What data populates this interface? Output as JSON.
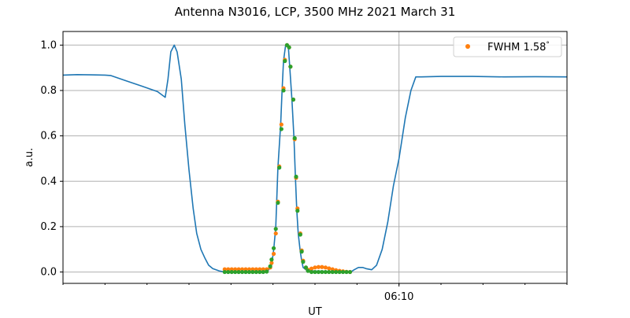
{
  "chart_data": {
    "type": "line",
    "title": "Antenna N3016, LCP, 3500 MHz 2021 March 31",
    "xlabel": "UT",
    "ylabel": "a.u.",
    "xlim": [
      "06:02:00",
      "06:14:00"
    ],
    "ylim": [
      -0.05,
      1.06
    ],
    "x_major_ticks": [
      {
        "t": "06:10:00",
        "label": "06:10"
      }
    ],
    "x_minor_tick_interval": "1 min",
    "y_ticks": [
      0.0,
      0.2,
      0.4,
      0.6,
      0.8,
      1.0
    ],
    "y_tick_labels": [
      "0.0",
      "0.2",
      "0.4",
      "0.6",
      "0.8",
      "1.0"
    ],
    "grid": "on (horizontal at y ticks, vertical at major x ticks)",
    "legend": {
      "placement": "top-right",
      "entries": [
        "FWHM 1.58$^\\circ$"
      ],
      "display": "FWHM 1.58",
      "degree_sign": "°"
    },
    "colors": {
      "line": "#1f77b4",
      "fit_dots": "#ff7f0e",
      "data_dots": "#2ca02c",
      "grid": "#b0b0b0"
    },
    "series": [
      {
        "style": "line",
        "color": "#1f77b4",
        "points": [
          [
            "06:02:00",
            0.868
          ],
          [
            "06:02:20",
            0.87
          ],
          [
            "06:02:40",
            0.869
          ],
          [
            "06:03:00",
            0.868
          ],
          [
            "06:03:08",
            0.866
          ],
          [
            "06:03:30",
            0.843
          ],
          [
            "06:03:52",
            0.82
          ],
          [
            "06:04:15",
            0.795
          ],
          [
            "06:04:26",
            0.77
          ],
          [
            "06:04:30",
            0.85
          ],
          [
            "06:04:34",
            0.97
          ],
          [
            "06:04:39",
            1.0
          ],
          [
            "06:04:43",
            0.97
          ],
          [
            "06:04:49",
            0.85
          ],
          [
            "06:04:54",
            0.65
          ],
          [
            "06:05:00",
            0.45
          ],
          [
            "06:05:06",
            0.28
          ],
          [
            "06:05:11",
            0.17
          ],
          [
            "06:05:17",
            0.1
          ],
          [
            "06:05:23",
            0.06
          ],
          [
            "06:05:28",
            0.03
          ],
          [
            "06:05:34",
            0.015
          ],
          [
            "06:05:43",
            0.005
          ],
          [
            "06:05:51",
            0.0
          ],
          [
            "06:06:52",
            0.002
          ],
          [
            "06:06:58",
            0.03
          ],
          [
            "06:07:01",
            0.1
          ],
          [
            "06:07:04",
            0.2
          ],
          [
            "06:07:07",
            0.46
          ],
          [
            "06:07:11",
            0.65
          ],
          [
            "06:07:13",
            0.8
          ],
          [
            "06:07:15",
            0.93
          ],
          [
            "06:07:18",
            1.0
          ],
          [
            "06:07:22",
            0.99
          ],
          [
            "06:07:24",
            0.9
          ],
          [
            "06:07:27",
            0.76
          ],
          [
            "06:07:30",
            0.59
          ],
          [
            "06:07:32",
            0.42
          ],
          [
            "06:07:34",
            0.27
          ],
          [
            "06:07:36",
            0.17
          ],
          [
            "06:07:39",
            0.09
          ],
          [
            "06:07:41",
            0.05
          ],
          [
            "06:07:43",
            0.02
          ],
          [
            "06:07:49",
            0.005
          ],
          [
            "06:08:51",
            0.0
          ],
          [
            "06:08:56",
            0.01
          ],
          [
            "06:09:02",
            0.02
          ],
          [
            "06:09:08",
            0.02
          ],
          [
            "06:09:13",
            0.015
          ],
          [
            "06:09:21",
            0.01
          ],
          [
            "06:09:28",
            0.03
          ],
          [
            "06:09:36",
            0.1
          ],
          [
            "06:09:44",
            0.22
          ],
          [
            "06:09:52",
            0.38
          ],
          [
            "06:10:00",
            0.5
          ],
          [
            "06:10:09",
            0.68
          ],
          [
            "06:10:17",
            0.8
          ],
          [
            "06:10:24",
            0.86
          ],
          [
            "06:10:32",
            0.86
          ],
          [
            "06:11:00",
            0.862
          ],
          [
            "06:11:45",
            0.862
          ],
          [
            "06:12:30",
            0.86
          ],
          [
            "06:13:15",
            0.861
          ],
          [
            "06:14:00",
            0.86
          ]
        ]
      },
      {
        "style": "dots",
        "legend": "FWHM 1.58",
        "color": "#ff7f0e",
        "points": [
          [
            "06:05:51",
            0.012
          ],
          [
            "06:05:56",
            0.012
          ],
          [
            "06:06:01",
            0.012
          ],
          [
            "06:06:06",
            0.012
          ],
          [
            "06:06:11",
            0.012
          ],
          [
            "06:06:16",
            0.012
          ],
          [
            "06:06:21",
            0.012
          ],
          [
            "06:06:26",
            0.012
          ],
          [
            "06:06:31",
            0.012
          ],
          [
            "06:06:36",
            0.012
          ],
          [
            "06:06:41",
            0.012
          ],
          [
            "06:06:46",
            0.012
          ],
          [
            "06:06:51",
            0.012
          ],
          [
            "06:06:56",
            0.02
          ],
          [
            "06:06:58",
            0.04
          ],
          [
            "06:07:01",
            0.08
          ],
          [
            "06:07:04",
            0.17
          ],
          [
            "06:07:07",
            0.31
          ],
          [
            "06:07:09",
            0.465
          ],
          [
            "06:07:12",
            0.65
          ],
          [
            "06:07:15",
            0.81
          ],
          [
            "06:07:17",
            0.935
          ],
          [
            "06:07:20",
            1.0
          ],
          [
            "06:07:23",
            0.99
          ],
          [
            "06:07:25",
            0.905
          ],
          [
            "06:07:29",
            0.76
          ],
          [
            "06:07:31",
            0.585
          ],
          [
            "06:07:33",
            0.415
          ],
          [
            "06:07:35",
            0.28
          ],
          [
            "06:07:39",
            0.17
          ],
          [
            "06:07:41",
            0.095
          ],
          [
            "06:07:43",
            0.05
          ],
          [
            "06:07:47",
            0.02
          ],
          [
            "06:07:50",
            0.01
          ],
          [
            "06:07:55",
            0.015
          ],
          [
            "06:08:00",
            0.02
          ],
          [
            "06:08:05",
            0.022
          ],
          [
            "06:08:10",
            0.022
          ],
          [
            "06:08:15",
            0.02
          ],
          [
            "06:08:20",
            0.016
          ],
          [
            "06:08:25",
            0.012
          ],
          [
            "06:08:30",
            0.008
          ],
          [
            "06:08:35",
            0.005
          ],
          [
            "06:08:40",
            0.003
          ],
          [
            "06:08:45",
            0.001
          ],
          [
            "06:08:50",
            0.0
          ]
        ]
      },
      {
        "style": "dots",
        "color": "#2ca02c",
        "points": [
          [
            "06:05:51",
            0.0
          ],
          [
            "06:05:56",
            0.0
          ],
          [
            "06:06:01",
            0.0
          ],
          [
            "06:06:06",
            0.0
          ],
          [
            "06:06:11",
            0.0
          ],
          [
            "06:06:16",
            0.0
          ],
          [
            "06:06:21",
            0.0
          ],
          [
            "06:06:26",
            0.0
          ],
          [
            "06:06:31",
            0.0
          ],
          [
            "06:06:36",
            0.0
          ],
          [
            "06:06:41",
            0.0
          ],
          [
            "06:06:46",
            0.0
          ],
          [
            "06:06:51",
            0.002
          ],
          [
            "06:06:56",
            0.025
          ],
          [
            "06:06:58",
            0.055
          ],
          [
            "06:07:01",
            0.105
          ],
          [
            "06:07:04",
            0.19
          ],
          [
            "06:07:07",
            0.305
          ],
          [
            "06:07:09",
            0.46
          ],
          [
            "06:07:12",
            0.63
          ],
          [
            "06:07:15",
            0.8
          ],
          [
            "06:07:17",
            0.93
          ],
          [
            "06:07:20",
            1.0
          ],
          [
            "06:07:23",
            0.99
          ],
          [
            "06:07:25",
            0.905
          ],
          [
            "06:07:29",
            0.76
          ],
          [
            "06:07:31",
            0.59
          ],
          [
            "06:07:33",
            0.42
          ],
          [
            "06:07:35",
            0.27
          ],
          [
            "06:07:39",
            0.165
          ],
          [
            "06:07:41",
            0.09
          ],
          [
            "06:07:43",
            0.045
          ],
          [
            "06:07:47",
            0.02
          ],
          [
            "06:07:50",
            0.005
          ],
          [
            "06:07:55",
            0.0
          ],
          [
            "06:08:00",
            0.0
          ],
          [
            "06:08:05",
            0.0
          ],
          [
            "06:08:10",
            0.0
          ],
          [
            "06:08:15",
            0.0
          ],
          [
            "06:08:20",
            0.0
          ],
          [
            "06:08:25",
            0.0
          ],
          [
            "06:08:30",
            0.0
          ],
          [
            "06:08:35",
            0.0
          ],
          [
            "06:08:40",
            0.0
          ],
          [
            "06:08:45",
            0.0
          ],
          [
            "06:08:50",
            0.0
          ]
        ]
      }
    ]
  }
}
